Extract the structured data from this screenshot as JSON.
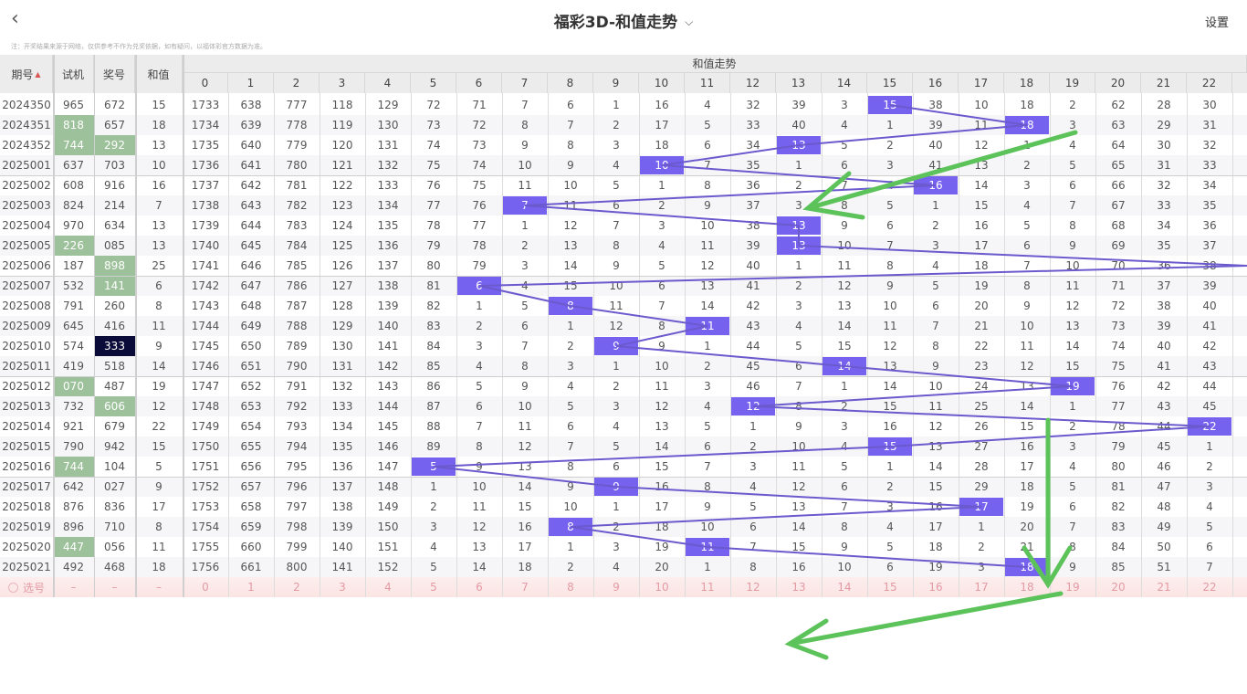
{
  "header": {
    "title": "福彩3D-和值走势",
    "settings": "设置"
  },
  "note": "注：开奖结果来源于网络，仅供参考不作为兑奖依据，如有疑问，以福体彩官方数据为准。",
  "columns": {
    "period": "期号",
    "trial": "试机",
    "draw": "奖号",
    "sum": "和值",
    "trend": "和值走势"
  },
  "trend_headers": [
    "0",
    "1",
    "2",
    "3",
    "4",
    "5",
    "6",
    "7",
    "8",
    "9",
    "10",
    "11",
    "12",
    "13",
    "14",
    "15",
    "16",
    "17",
    "18",
    "19",
    "20",
    "21",
    "22"
  ],
  "colors": {
    "hit": "#7563ef",
    "line": "#6a5acd",
    "trial_highlight": "#9dc19a",
    "repeat_highlight": "#0b0b3a",
    "annotation_arrow": "#5cc25a"
  },
  "rows": [
    {
      "period": "2024350",
      "trial": "965",
      "draw": "672",
      "sum": 15,
      "trend": [
        1733,
        638,
        777,
        118,
        129,
        72,
        71,
        7,
        6,
        1,
        16,
        4,
        32,
        39,
        3,
        15,
        38,
        10,
        18,
        2,
        62,
        28,
        30
      ]
    },
    {
      "period": "2024351",
      "trial": "818",
      "draw": "657",
      "sum": 18,
      "trial_hl": "green",
      "trend": [
        1734,
        639,
        778,
        119,
        130,
        73,
        72,
        8,
        7,
        2,
        17,
        5,
        33,
        40,
        4,
        1,
        39,
        11,
        18,
        3,
        63,
        29,
        31
      ]
    },
    {
      "period": "2024352",
      "trial": "744",
      "draw": "292",
      "sum": 13,
      "trial_hl": "green",
      "draw_hl": "green",
      "trend": [
        1735,
        640,
        779,
        120,
        131,
        74,
        73,
        9,
        8,
        3,
        18,
        6,
        34,
        13,
        5,
        2,
        40,
        12,
        1,
        4,
        64,
        30,
        32
      ]
    },
    {
      "period": "2025001",
      "trial": "637",
      "draw": "703",
      "sum": 10,
      "trend": [
        1736,
        641,
        780,
        121,
        132,
        75,
        74,
        10,
        9,
        4,
        10,
        7,
        35,
        1,
        6,
        3,
        41,
        13,
        2,
        5,
        65,
        31,
        33
      ]
    },
    {
      "period": "2025002",
      "trial": "608",
      "draw": "916",
      "sum": 16,
      "trend": [
        1737,
        642,
        781,
        122,
        133,
        76,
        75,
        11,
        10,
        5,
        1,
        8,
        36,
        2,
        7,
        4,
        16,
        14,
        3,
        6,
        66,
        32,
        34
      ]
    },
    {
      "period": "2025003",
      "trial": "824",
      "draw": "214",
      "sum": 7,
      "trend": [
        1738,
        643,
        782,
        123,
        134,
        77,
        76,
        7,
        11,
        6,
        2,
        9,
        37,
        3,
        8,
        5,
        1,
        15,
        4,
        7,
        67,
        33,
        35
      ]
    },
    {
      "period": "2025004",
      "trial": "970",
      "draw": "634",
      "sum": 13,
      "trend": [
        1739,
        644,
        783,
        124,
        135,
        78,
        77,
        1,
        12,
        7,
        3,
        10,
        38,
        13,
        9,
        6,
        2,
        16,
        5,
        8,
        68,
        34,
        36
      ]
    },
    {
      "period": "2025005",
      "trial": "226",
      "draw": "085",
      "sum": 13,
      "trial_hl": "green",
      "trend": [
        1740,
        645,
        784,
        125,
        136,
        79,
        78,
        2,
        13,
        8,
        4,
        11,
        39,
        13,
        10,
        7,
        3,
        17,
        6,
        9,
        69,
        35,
        37
      ]
    },
    {
      "period": "2025006",
      "trial": "187",
      "draw": "898",
      "sum": 25,
      "draw_hl": "green",
      "trend": [
        1741,
        646,
        785,
        126,
        137,
        80,
        79,
        3,
        14,
        9,
        5,
        12,
        40,
        1,
        11,
        8,
        4,
        18,
        7,
        10,
        70,
        36,
        38
      ]
    },
    {
      "period": "2025007",
      "trial": "532",
      "draw": "141",
      "sum": 6,
      "draw_hl": "green",
      "trend": [
        1742,
        647,
        786,
        127,
        138,
        81,
        6,
        4,
        15,
        10,
        6,
        13,
        41,
        2,
        12,
        9,
        5,
        19,
        8,
        11,
        71,
        37,
        39
      ]
    },
    {
      "period": "2025008",
      "trial": "791",
      "draw": "260",
      "sum": 8,
      "trend": [
        1743,
        648,
        787,
        128,
        139,
        82,
        1,
        5,
        8,
        11,
        7,
        14,
        42,
        3,
        13,
        10,
        6,
        20,
        9,
        12,
        72,
        38,
        40
      ]
    },
    {
      "period": "2025009",
      "trial": "645",
      "draw": "416",
      "sum": 11,
      "trend": [
        1744,
        649,
        788,
        129,
        140,
        83,
        2,
        6,
        1,
        12,
        8,
        11,
        43,
        4,
        14,
        11,
        7,
        21,
        10,
        13,
        73,
        39,
        41
      ]
    },
    {
      "period": "2025010",
      "trial": "574",
      "draw": "333",
      "sum": 9,
      "draw_hl": "navy",
      "trend": [
        1745,
        650,
        789,
        130,
        141,
        84,
        3,
        7,
        2,
        9,
        9,
        1,
        44,
        5,
        15,
        12,
        8,
        22,
        11,
        14,
        74,
        40,
        42
      ]
    },
    {
      "period": "2025011",
      "trial": "419",
      "draw": "518",
      "sum": 14,
      "trend": [
        1746,
        651,
        790,
        131,
        142,
        85,
        4,
        8,
        3,
        1,
        10,
        2,
        45,
        6,
        14,
        13,
        9,
        23,
        12,
        15,
        75,
        41,
        43
      ]
    },
    {
      "period": "2025012",
      "trial": "070",
      "draw": "487",
      "sum": 19,
      "trial_hl": "green",
      "trend": [
        1747,
        652,
        791,
        132,
        143,
        86,
        5,
        9,
        4,
        2,
        11,
        3,
        46,
        7,
        1,
        14,
        10,
        24,
        13,
        19,
        76,
        42,
        44
      ]
    },
    {
      "period": "2025013",
      "trial": "732",
      "draw": "606",
      "sum": 12,
      "draw_hl": "green",
      "trend": [
        1748,
        653,
        792,
        133,
        144,
        87,
        6,
        10,
        5,
        3,
        12,
        4,
        12,
        8,
        2,
        15,
        11,
        25,
        14,
        1,
        77,
        43,
        45
      ]
    },
    {
      "period": "2025014",
      "trial": "921",
      "draw": "679",
      "sum": 22,
      "trend": [
        1749,
        654,
        793,
        134,
        145,
        88,
        7,
        11,
        6,
        4,
        13,
        5,
        1,
        9,
        3,
        16,
        12,
        26,
        15,
        2,
        78,
        44,
        22
      ]
    },
    {
      "period": "2025015",
      "trial": "790",
      "draw": "942",
      "sum": 15,
      "trend": [
        1750,
        655,
        794,
        135,
        146,
        89,
        8,
        12,
        7,
        5,
        14,
        6,
        2,
        10,
        4,
        15,
        13,
        27,
        16,
        3,
        79,
        45,
        1
      ]
    },
    {
      "period": "2025016",
      "trial": "744",
      "draw": "104",
      "sum": 5,
      "trial_hl": "green",
      "trend": [
        1751,
        656,
        795,
        136,
        147,
        5,
        9,
        13,
        8,
        6,
        15,
        7,
        3,
        11,
        5,
        1,
        14,
        28,
        17,
        4,
        80,
        46,
        2
      ]
    },
    {
      "period": "2025017",
      "trial": "642",
      "draw": "027",
      "sum": 9,
      "trend": [
        1752,
        657,
        796,
        137,
        148,
        1,
        10,
        14,
        9,
        9,
        16,
        8,
        4,
        12,
        6,
        2,
        15,
        29,
        18,
        5,
        81,
        47,
        3
      ]
    },
    {
      "period": "2025018",
      "trial": "876",
      "draw": "836",
      "sum": 17,
      "trend": [
        1753,
        658,
        797,
        138,
        149,
        2,
        11,
        15,
        10,
        1,
        17,
        9,
        5,
        13,
        7,
        3,
        16,
        17,
        19,
        6,
        82,
        48,
        4
      ]
    },
    {
      "period": "2025019",
      "trial": "896",
      "draw": "710",
      "sum": 8,
      "trend": [
        1754,
        659,
        798,
        139,
        150,
        3,
        12,
        16,
        8,
        2,
        18,
        10,
        6,
        14,
        8,
        4,
        17,
        1,
        20,
        7,
        83,
        49,
        5
      ]
    },
    {
      "period": "2025020",
      "trial": "447",
      "draw": "056",
      "sum": 11,
      "trial_hl": "green",
      "trend": [
        1755,
        660,
        799,
        140,
        151,
        4,
        13,
        17,
        1,
        3,
        19,
        11,
        7,
        15,
        9,
        5,
        18,
        2,
        21,
        8,
        84,
        50,
        6
      ]
    },
    {
      "period": "2025021",
      "trial": "492",
      "draw": "468",
      "sum": 18,
      "trend": [
        1756,
        661,
        800,
        141,
        152,
        5,
        14,
        18,
        2,
        4,
        20,
        1,
        8,
        16,
        10,
        6,
        19,
        3,
        18,
        9,
        85,
        51,
        7
      ]
    }
  ],
  "pick_row": {
    "label": "选号",
    "placeholder": "–",
    "numbers": [
      "0",
      "1",
      "2",
      "3",
      "4",
      "5",
      "6",
      "7",
      "8",
      "9",
      "10",
      "11",
      "12",
      "13",
      "14",
      "15",
      "16",
      "17",
      "18",
      "19",
      "20",
      "21",
      "22"
    ]
  }
}
